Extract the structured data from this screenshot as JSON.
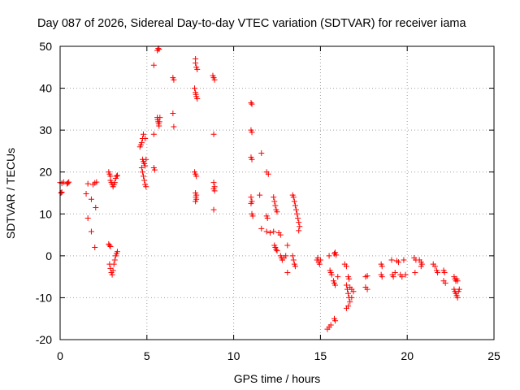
{
  "chart_data": {
    "type": "scatter",
    "title": "Day 087 of 2026, Sidereal Day-to-day VTEC variation (SDTVAR) for receiver iama",
    "xlabel": "GPS time / hours",
    "ylabel": "SDTVAR / TECUs",
    "xlim": [
      0,
      25
    ],
    "ylim": [
      -20,
      50
    ],
    "xticks": [
      0,
      5,
      10,
      15,
      20,
      25
    ],
    "yticks": [
      -20,
      -10,
      0,
      10,
      20,
      30,
      40,
      50
    ],
    "grid": true,
    "marker": "+",
    "color": "#ff0000",
    "series": [
      {
        "name": "SDTVAR",
        "points": [
          [
            0.0,
            17.5
          ],
          [
            0.1,
            17.3
          ],
          [
            0.2,
            17.6
          ],
          [
            0.05,
            15.0
          ],
          [
            0.1,
            15.2
          ],
          [
            0.4,
            17.2
          ],
          [
            0.45,
            17.4
          ],
          [
            0.5,
            17.6
          ],
          [
            1.5,
            14.8
          ],
          [
            1.6,
            17.2
          ],
          [
            1.6,
            9.0
          ],
          [
            1.8,
            13.5
          ],
          [
            1.8,
            5.8
          ],
          [
            1.9,
            17.0
          ],
          [
            2.0,
            17.4
          ],
          [
            2.05,
            11.5
          ],
          [
            2.1,
            17.6
          ],
          [
            2.0,
            2.0
          ],
          [
            2.8,
            2.8
          ],
          [
            2.85,
            2.5
          ],
          [
            2.9,
            2.2
          ],
          [
            2.85,
            -2.0
          ],
          [
            2.9,
            -3.0
          ],
          [
            2.95,
            -4.0
          ],
          [
            3.0,
            -4.5
          ],
          [
            3.05,
            -3.5
          ],
          [
            3.1,
            -2.0
          ],
          [
            3.15,
            -1.0
          ],
          [
            3.2,
            0.0
          ],
          [
            3.25,
            0.5
          ],
          [
            3.3,
            1.0
          ],
          [
            2.8,
            20.0
          ],
          [
            2.85,
            19.5
          ],
          [
            2.9,
            19.0
          ],
          [
            2.9,
            18.0
          ],
          [
            2.95,
            17.5
          ],
          [
            3.0,
            17.0
          ],
          [
            3.05,
            16.5
          ],
          [
            3.1,
            17.0
          ],
          [
            3.15,
            17.5
          ],
          [
            3.2,
            18.5
          ],
          [
            3.25,
            19.0
          ],
          [
            3.3,
            19.2
          ],
          [
            4.6,
            26.0
          ],
          [
            4.65,
            26.5
          ],
          [
            4.7,
            27.0
          ],
          [
            4.75,
            28.0
          ],
          [
            4.8,
            29.0
          ],
          [
            4.9,
            28.0
          ],
          [
            4.75,
            23.0
          ],
          [
            4.8,
            22.5
          ],
          [
            4.85,
            22.0
          ],
          [
            4.9,
            21.5
          ],
          [
            4.95,
            23.0
          ],
          [
            4.7,
            21.0
          ],
          [
            4.75,
            20.0
          ],
          [
            4.8,
            19.0
          ],
          [
            4.85,
            18.0
          ],
          [
            4.9,
            17.0
          ],
          [
            4.95,
            16.5
          ],
          [
            5.4,
            45.5
          ],
          [
            5.4,
            29.0
          ],
          [
            5.4,
            21.0
          ],
          [
            5.45,
            20.5
          ],
          [
            5.6,
            49.0
          ],
          [
            5.65,
            49.5
          ],
          [
            5.7,
            49.3
          ],
          [
            5.6,
            33.0
          ],
          [
            5.62,
            32.5
          ],
          [
            5.65,
            32.0
          ],
          [
            5.68,
            31.5
          ],
          [
            5.7,
            31.0
          ],
          [
            5.72,
            32.0
          ],
          [
            5.75,
            33.0
          ],
          [
            6.5,
            42.5
          ],
          [
            6.55,
            42.0
          ],
          [
            6.5,
            34.0
          ],
          [
            6.55,
            30.8
          ],
          [
            7.8,
            47.0
          ],
          [
            7.8,
            46.0
          ],
          [
            7.85,
            45.0
          ],
          [
            7.9,
            44.5
          ],
          [
            7.75,
            40.0
          ],
          [
            7.8,
            39.0
          ],
          [
            7.82,
            38.5
          ],
          [
            7.85,
            38.0
          ],
          [
            7.9,
            37.5
          ],
          [
            7.75,
            20.0
          ],
          [
            7.8,
            19.5
          ],
          [
            7.85,
            19.0
          ],
          [
            7.8,
            15.0
          ],
          [
            7.85,
            14.5
          ],
          [
            7.82,
            14.0
          ],
          [
            7.85,
            13.5
          ],
          [
            7.8,
            13.0
          ],
          [
            8.8,
            43.0
          ],
          [
            8.85,
            42.5
          ],
          [
            8.9,
            42.0
          ],
          [
            8.85,
            29.0
          ],
          [
            8.85,
            17.5
          ],
          [
            8.9,
            16.5
          ],
          [
            8.85,
            16.0
          ],
          [
            8.9,
            15.5
          ],
          [
            8.85,
            11.0
          ],
          [
            11.0,
            36.5
          ],
          [
            11.05,
            36.2
          ],
          [
            11.0,
            30.0
          ],
          [
            11.05,
            29.5
          ],
          [
            11.0,
            23.5
          ],
          [
            11.05,
            23.0
          ],
          [
            11.0,
            14.0
          ],
          [
            11.05,
            13.0
          ],
          [
            11.0,
            12.5
          ],
          [
            11.05,
            10.0
          ],
          [
            11.1,
            9.5
          ],
          [
            11.6,
            24.5
          ],
          [
            11.5,
            14.5
          ],
          [
            11.6,
            6.5
          ],
          [
            11.9,
            20.0
          ],
          [
            12.0,
            19.5
          ],
          [
            11.9,
            9.5
          ],
          [
            11.95,
            9.0
          ],
          [
            11.9,
            5.8
          ],
          [
            12.1,
            5.5
          ],
          [
            12.3,
            14.0
          ],
          [
            12.35,
            13.0
          ],
          [
            12.4,
            12.0
          ],
          [
            12.45,
            11.0
          ],
          [
            12.5,
            10.5
          ],
          [
            12.3,
            5.8
          ],
          [
            12.35,
            2.5
          ],
          [
            12.4,
            2.0
          ],
          [
            12.45,
            1.5
          ],
          [
            12.5,
            1.2
          ],
          [
            12.6,
            5.5
          ],
          [
            12.7,
            5.0
          ],
          [
            12.7,
            0.0
          ],
          [
            12.75,
            -0.5
          ],
          [
            12.8,
            -1.0
          ],
          [
            12.9,
            -0.5
          ],
          [
            13.0,
            0.0
          ],
          [
            13.1,
            2.5
          ],
          [
            13.1,
            -4.0
          ],
          [
            13.4,
            14.5
          ],
          [
            13.45,
            14.0
          ],
          [
            13.5,
            13.0
          ],
          [
            13.55,
            12.0
          ],
          [
            13.6,
            11.0
          ],
          [
            13.65,
            10.0
          ],
          [
            13.7,
            9.0
          ],
          [
            13.75,
            8.0
          ],
          [
            13.8,
            7.0
          ],
          [
            13.75,
            6.0
          ],
          [
            13.4,
            0.0
          ],
          [
            13.45,
            -1.0
          ],
          [
            13.5,
            -2.0
          ],
          [
            13.55,
            -2.5
          ],
          [
            14.8,
            -1.0
          ],
          [
            14.85,
            -0.5
          ],
          [
            14.9,
            -1.5
          ],
          [
            14.95,
            -2.0
          ],
          [
            15.0,
            -1.0
          ],
          [
            15.4,
            -17.5
          ],
          [
            15.5,
            -17.0
          ],
          [
            15.6,
            -16.5
          ],
          [
            15.5,
            0.0
          ],
          [
            15.55,
            -3.5
          ],
          [
            15.6,
            -4.0
          ],
          [
            15.65,
            -4.5
          ],
          [
            15.8,
            0.5
          ],
          [
            15.85,
            0.8
          ],
          [
            15.9,
            0.2
          ],
          [
            15.75,
            -6.0
          ],
          [
            15.8,
            -6.5
          ],
          [
            15.85,
            -7.0
          ],
          [
            15.8,
            -15.0
          ],
          [
            15.85,
            -15.5
          ],
          [
            16.0,
            -5.0
          ],
          [
            16.4,
            -2.0
          ],
          [
            16.5,
            -2.5
          ],
          [
            16.6,
            -5.0
          ],
          [
            16.65,
            -5.5
          ],
          [
            16.5,
            -7.0
          ],
          [
            16.55,
            -8.0
          ],
          [
            16.6,
            -9.0
          ],
          [
            16.65,
            -10.0
          ],
          [
            16.7,
            -11.0
          ],
          [
            16.6,
            -12.0
          ],
          [
            16.5,
            -12.5
          ],
          [
            16.7,
            -7.5
          ],
          [
            16.8,
            -8.0
          ],
          [
            16.9,
            -8.5
          ],
          [
            16.8,
            -10.0
          ],
          [
            17.6,
            -5.0
          ],
          [
            17.7,
            -4.8
          ],
          [
            17.6,
            -7.5
          ],
          [
            17.7,
            -8.0
          ],
          [
            18.5,
            -2.0
          ],
          [
            18.55,
            -2.5
          ],
          [
            18.5,
            -4.5
          ],
          [
            18.55,
            -5.0
          ],
          [
            19.1,
            -1.0
          ],
          [
            19.15,
            -4.5
          ],
          [
            19.2,
            -5.0
          ],
          [
            19.3,
            -4.0
          ],
          [
            19.4,
            -1.2
          ],
          [
            19.5,
            -1.5
          ],
          [
            19.6,
            -4.5
          ],
          [
            19.7,
            -5.0
          ],
          [
            19.8,
            -1.0
          ],
          [
            19.9,
            -4.5
          ],
          [
            20.4,
            -0.5
          ],
          [
            20.5,
            -1.0
          ],
          [
            20.45,
            -4.0
          ],
          [
            20.7,
            -1.0
          ],
          [
            20.8,
            -1.5
          ],
          [
            20.85,
            -2.0
          ],
          [
            20.8,
            -2.5
          ],
          [
            21.5,
            -2.0
          ],
          [
            21.6,
            -2.5
          ],
          [
            21.7,
            -3.5
          ],
          [
            21.75,
            -4.0
          ],
          [
            22.1,
            -3.5
          ],
          [
            22.15,
            -4.0
          ],
          [
            22.1,
            -6.0
          ],
          [
            22.2,
            -6.5
          ],
          [
            22.7,
            -5.0
          ],
          [
            22.75,
            -5.5
          ],
          [
            22.8,
            -6.0
          ],
          [
            22.85,
            -5.5
          ],
          [
            22.9,
            -6.0
          ],
          [
            22.7,
            -8.0
          ],
          [
            22.75,
            -8.5
          ],
          [
            22.8,
            -9.0
          ],
          [
            22.85,
            -9.5
          ],
          [
            22.9,
            -10.0
          ],
          [
            22.95,
            -8.5
          ],
          [
            23.0,
            -8.0
          ]
        ]
      }
    ]
  }
}
